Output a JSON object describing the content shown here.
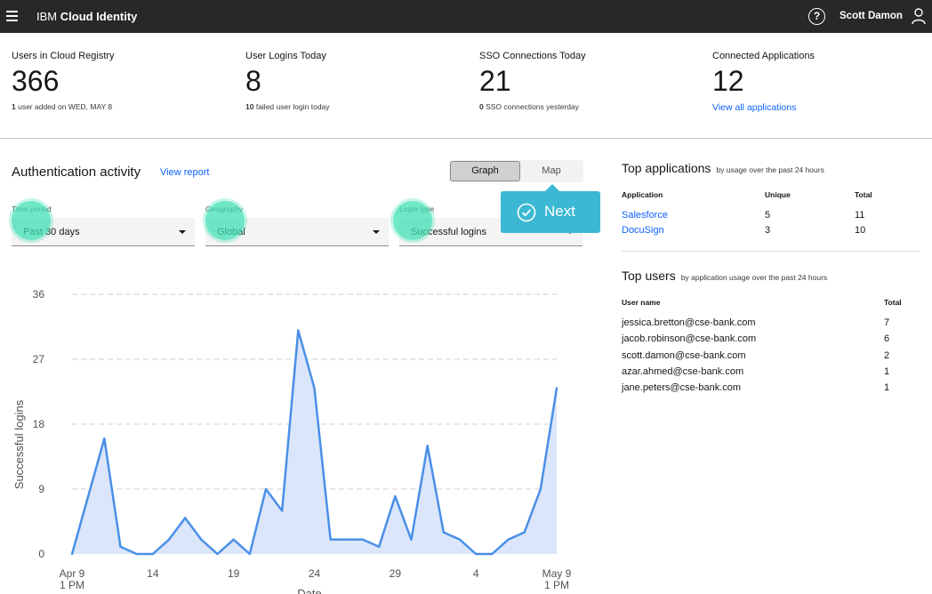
{
  "header": {
    "brand_prefix": "IBM",
    "brand_name": "Cloud Identity",
    "help_symbol": "?",
    "user_name": "Scott Damon"
  },
  "stats": [
    {
      "label": "Users in Cloud Registry",
      "value": "366",
      "sub_bold": "1",
      "sub_text": " user added on WED, MAY 8"
    },
    {
      "label": "User Logins Today",
      "value": "8",
      "sub_bold": "10",
      "sub_text": " failed user login today"
    },
    {
      "label": "SSO Connections Today",
      "value": "21",
      "sub_bold": "0",
      "sub_text": " SSO connections yesterday"
    },
    {
      "label": "Connected Applications",
      "value": "12",
      "link": "View all applications"
    }
  ],
  "auth": {
    "title": "Authentication activity",
    "view_report": "View report",
    "toggle_graph": "Graph",
    "toggle_map": "Map",
    "filters": [
      {
        "label": "Time period",
        "value": "Past 30 days"
      },
      {
        "label": "Geography",
        "value": "Global"
      },
      {
        "label": "Login type",
        "value": "Successful logins"
      }
    ],
    "next_label": "Next"
  },
  "chart_data": {
    "type": "area",
    "title": "",
    "xlabel": "Date",
    "ylabel": "Successful logins",
    "ylim": [
      0,
      36
    ],
    "yticks": [
      "0",
      "9",
      "18",
      "27",
      "36"
    ],
    "xticks": [
      {
        "label": "Apr 9",
        "label2": "1 PM",
        "index": 0
      },
      {
        "label": "14",
        "label2": "",
        "index": 5
      },
      {
        "label": "19",
        "label2": "",
        "index": 10
      },
      {
        "label": "24",
        "label2": "",
        "index": 15
      },
      {
        "label": "29",
        "label2": "",
        "index": 20
      },
      {
        "label": "4",
        "label2": "",
        "index": 25
      },
      {
        "label": "May 9",
        "label2": "1 PM",
        "index": 30
      }
    ],
    "values": [
      0,
      8,
      16,
      1,
      0,
      0,
      2,
      5,
      2,
      0,
      2,
      0,
      9,
      6,
      31,
      23,
      2,
      2,
      2,
      1,
      8,
      2,
      15,
      3,
      2,
      0,
      0,
      2,
      3,
      9,
      23
    ],
    "line_color": "#4a8fe7",
    "fill_color": "#dbe6fb"
  },
  "top_apps": {
    "title": "Top applications",
    "subtitle": "by usage over the past 24 hours",
    "headers": [
      "Application",
      "Unique",
      "Total"
    ],
    "rows": [
      {
        "name": "Salesforce",
        "unique": "5",
        "total": "11"
      },
      {
        "name": "DocuSign",
        "unique": "3",
        "total": "10"
      }
    ]
  },
  "top_users": {
    "title": "Top users",
    "subtitle": "by application usage over the past 24 hours",
    "headers": [
      "User name",
      "Total"
    ],
    "rows": [
      {
        "name": "jessica.bretton@cse-bank.com",
        "total": "7"
      },
      {
        "name": "jacob.robinson@cse-bank.com",
        "total": "6"
      },
      {
        "name": "scott.damon@cse-bank.com",
        "total": "2"
      },
      {
        "name": "azar.ahmed@cse-bank.com",
        "total": "1"
      },
      {
        "name": "jane.peters@cse-bank.com",
        "total": "1"
      }
    ]
  }
}
